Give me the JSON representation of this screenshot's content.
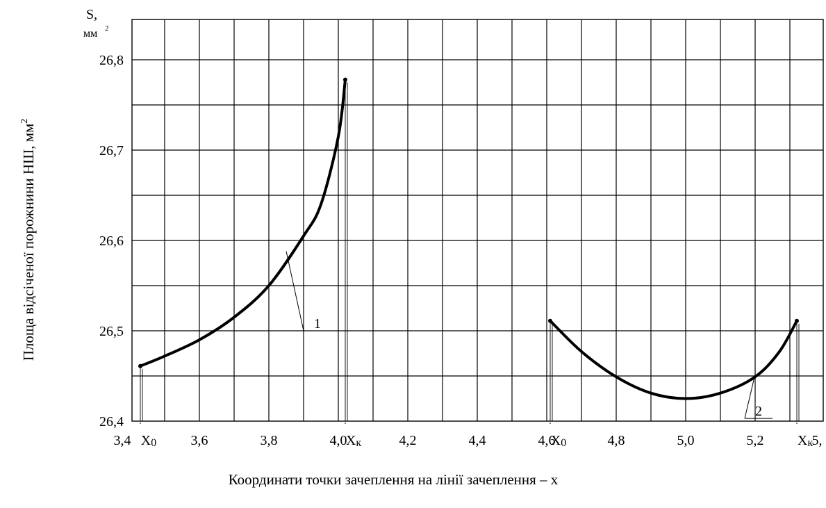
{
  "chart_data": {
    "type": "line",
    "title": "",
    "xlabel": "Координати точки зачеплення на лінії зачеплення – х",
    "ylabel": "Площа відсіченої порожнини НШ, мм",
    "ylabel_sup": "2",
    "y_unit_top": "S,",
    "y_unit_bottom": "мм",
    "y_unit_sup": "2",
    "xlim": [
      3.4,
      5.35
    ],
    "ylim": [
      26.4,
      26.85
    ],
    "grid": true,
    "x_grid_step": 0.1,
    "y_grid_step": 0.05,
    "x_ticks": [
      {
        "value": 3.4,
        "label": "3,4"
      },
      {
        "value": 3.6,
        "label": "3,6"
      },
      {
        "value": 3.8,
        "label": "3,8"
      },
      {
        "value": 4.0,
        "label": "4,0"
      },
      {
        "value": 4.2,
        "label": "4,2"
      },
      {
        "value": 4.4,
        "label": "4,4"
      },
      {
        "value": 4.6,
        "label": "4,6"
      },
      {
        "value": 4.8,
        "label": "4,8"
      },
      {
        "value": 5.0,
        "label": "5,0"
      },
      {
        "value": 5.2,
        "label": "5,2"
      },
      {
        "value": 5.35,
        "label": "5,"
      }
    ],
    "y_ticks": [
      {
        "value": 26.4,
        "label": "26,4"
      },
      {
        "value": 26.5,
        "label": "26,5"
      },
      {
        "value": 26.6,
        "label": "26,6"
      },
      {
        "value": 26.7,
        "label": "26,7"
      },
      {
        "value": 26.8,
        "label": "26,8"
      }
    ],
    "x_markers": [
      {
        "value": 3.43,
        "label": "X",
        "sub": "0"
      },
      {
        "value": 4.02,
        "label": "X",
        "sub": "к"
      },
      {
        "value": 4.61,
        "label": "X",
        "sub": "0"
      },
      {
        "value": 5.32,
        "label": "X",
        "sub": "к"
      }
    ],
    "series": [
      {
        "name": "1",
        "x": [
          3.43,
          3.5,
          3.6,
          3.7,
          3.8,
          3.9,
          3.95,
          4.0,
          4.02
        ],
        "y": [
          26.461,
          26.472,
          26.49,
          26.515,
          26.55,
          26.605,
          26.64,
          26.715,
          26.778
        ],
        "label_at": {
          "x": 3.9,
          "y": 26.5
        },
        "label_from": {
          "x": 3.85,
          "y": 26.588
        }
      },
      {
        "name": "2",
        "x": [
          4.61,
          4.7,
          4.8,
          4.9,
          5.0,
          5.1,
          5.2,
          5.27,
          5.32
        ],
        "y": [
          26.511,
          26.477,
          26.449,
          26.431,
          26.425,
          26.431,
          26.449,
          26.477,
          26.511
        ],
        "label_at": {
          "x": 5.17,
          "y": 26.403
        },
        "label_from": {
          "x": 5.2,
          "y": 26.452
        }
      }
    ]
  }
}
